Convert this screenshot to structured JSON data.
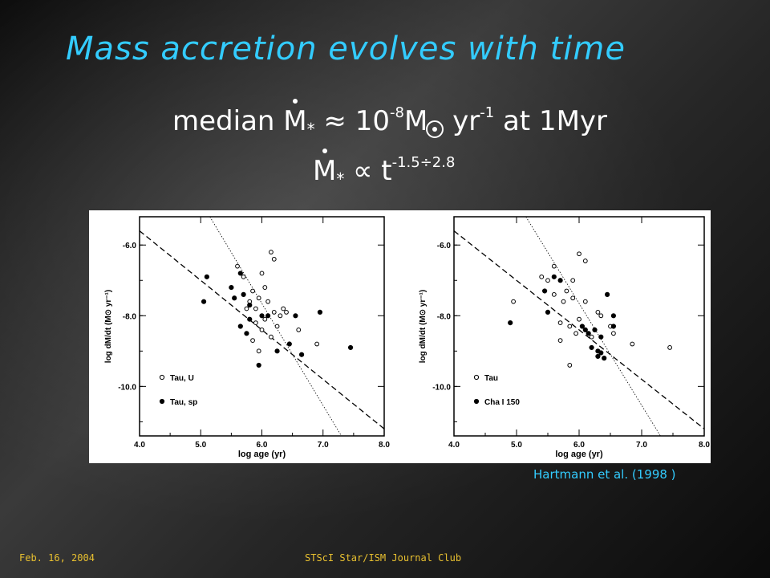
{
  "slide": {
    "title": "Mass accretion evolves with time",
    "eq1": {
      "pre": "median ",
      "m": "M",
      "star": "*",
      "approx": " ≈ 10",
      "exp": "-8",
      "msun": "M",
      "yr": " yr",
      "yrexp": "-1",
      "post": " at 1Myr"
    },
    "eq2": {
      "m": "M",
      "star": "*",
      "prop": " ∝ t",
      "exp": "-1.5÷2.8"
    },
    "citation": "Hartmann et al. (1998 )",
    "footer_date": "Feb. 16, 2004",
    "footer_club": "STScI Star/ISM Journal Club"
  },
  "chart_data": [
    {
      "type": "scatter",
      "xlabel": "log age (yr)",
      "ylabel": "log dM/dt (M⊙ yr⁻¹)",
      "xlim": [
        4.0,
        8.0
      ],
      "ylim": [
        -11.4,
        -5.2
      ],
      "xticks": [
        "4.0",
        "5.0",
        "6.0",
        "7.0",
        "8.0"
      ],
      "yticks": [
        "-6.0",
        "-8.0",
        "-10.0"
      ],
      "xtick_values": [
        4.0,
        5.0,
        6.0,
        7.0,
        8.0
      ],
      "ytick_values": [
        -6.0,
        -8.0,
        -10.0
      ],
      "legend_position": "bottom-left",
      "series": [
        {
          "name": "Tau, U",
          "marker": "open",
          "points": [
            [
              6.15,
              -6.2
            ],
            [
              6.2,
              -6.4
            ],
            [
              5.7,
              -6.9
            ],
            [
              6.0,
              -6.8
            ],
            [
              6.05,
              -7.2
            ],
            [
              5.85,
              -7.3
            ],
            [
              5.95,
              -7.5
            ],
            [
              5.8,
              -7.6
            ],
            [
              6.1,
              -7.6
            ],
            [
              5.75,
              -7.8
            ],
            [
              6.2,
              -7.9
            ],
            [
              6.3,
              -8.0
            ],
            [
              6.4,
              -7.9
            ],
            [
              6.35,
              -7.8
            ],
            [
              5.9,
              -8.2
            ],
            [
              6.0,
              -8.4
            ],
            [
              6.15,
              -8.6
            ],
            [
              5.85,
              -8.7
            ],
            [
              6.25,
              -8.3
            ],
            [
              6.6,
              -8.4
            ],
            [
              6.9,
              -8.8
            ],
            [
              5.95,
              -9.0
            ],
            [
              6.05,
              -8.1
            ],
            [
              5.9,
              -7.8
            ],
            [
              5.6,
              -6.6
            ]
          ]
        },
        {
          "name": "Tau, sp",
          "marker": "filled",
          "points": [
            [
              5.1,
              -6.9
            ],
            [
              5.05,
              -7.6
            ],
            [
              5.5,
              -7.2
            ],
            [
              5.65,
              -6.8
            ],
            [
              5.55,
              -7.5
            ],
            [
              5.7,
              -7.4
            ],
            [
              5.8,
              -7.7
            ],
            [
              6.1,
              -8.0
            ],
            [
              5.75,
              -8.5
            ],
            [
              5.65,
              -8.3
            ],
            [
              6.0,
              -8.0
            ],
            [
              6.55,
              -8.0
            ],
            [
              6.95,
              -7.9
            ],
            [
              6.45,
              -8.8
            ],
            [
              6.65,
              -9.1
            ],
            [
              7.45,
              -8.9
            ],
            [
              5.95,
              -9.4
            ],
            [
              6.25,
              -9.0
            ],
            [
              5.8,
              -8.1
            ]
          ]
        }
      ],
      "lines": [
        {
          "style": "dashed",
          "from": [
            4.0,
            -5.6
          ],
          "to": [
            8.0,
            -11.2
          ]
        },
        {
          "style": "dotted",
          "from": [
            5.15,
            -5.2
          ],
          "to": [
            7.3,
            -11.4
          ]
        }
      ]
    },
    {
      "type": "scatter",
      "xlabel": "log age (yr)",
      "ylabel": "log dM/dt (M⊙ yr⁻¹)",
      "xlim": [
        4.0,
        8.0
      ],
      "ylim": [
        -11.4,
        -5.2
      ],
      "xticks": [
        "4.0",
        "5.0",
        "6.0",
        "7.0",
        "8.0"
      ],
      "yticks": [
        "-6.0",
        "-8.0",
        "-10.0"
      ],
      "xtick_values": [
        4.0,
        5.0,
        6.0,
        7.0,
        8.0
      ],
      "ytick_values": [
        -6.0,
        -8.0,
        -10.0
      ],
      "legend_position": "bottom-left",
      "series": [
        {
          "name": "Tau",
          "marker": "open",
          "points": [
            [
              6.0,
              -6.25
            ],
            [
              6.1,
              -6.45
            ],
            [
              5.6,
              -6.6
            ],
            [
              5.4,
              -6.9
            ],
            [
              5.9,
              -7.0
            ],
            [
              5.8,
              -7.3
            ],
            [
              5.6,
              -7.4
            ],
            [
              5.75,
              -7.6
            ],
            [
              5.9,
              -7.5
            ],
            [
              6.1,
              -7.6
            ],
            [
              6.3,
              -7.9
            ],
            [
              6.35,
              -8.0
            ],
            [
              5.7,
              -8.2
            ],
            [
              5.85,
              -8.3
            ],
            [
              5.95,
              -8.5
            ],
            [
              6.2,
              -8.6
            ],
            [
              5.7,
              -8.7
            ],
            [
              6.5,
              -8.3
            ],
            [
              6.55,
              -8.5
            ],
            [
              6.85,
              -8.8
            ],
            [
              7.45,
              -8.9
            ],
            [
              5.85,
              -9.4
            ],
            [
              6.0,
              -8.1
            ],
            [
              5.5,
              -7.0
            ],
            [
              4.95,
              -7.6
            ]
          ]
        },
        {
          "name": "Cha I 150",
          "marker": "filled",
          "points": [
            [
              4.9,
              -8.2
            ],
            [
              5.6,
              -6.9
            ],
            [
              5.7,
              -7.0
            ],
            [
              5.45,
              -7.3
            ],
            [
              5.5,
              -7.9
            ],
            [
              6.1,
              -8.4
            ],
            [
              6.15,
              -8.5
            ],
            [
              6.25,
              -8.4
            ],
            [
              6.35,
              -8.6
            ],
            [
              6.3,
              -9.0
            ],
            [
              6.3,
              -9.15
            ],
            [
              6.35,
              -9.05
            ],
            [
              6.55,
              -8.0
            ],
            [
              6.55,
              -8.3
            ],
            [
              6.45,
              -7.4
            ],
            [
              6.05,
              -8.3
            ],
            [
              6.2,
              -8.9
            ],
            [
              6.4,
              -9.2
            ]
          ]
        }
      ],
      "lines": [
        {
          "style": "dashed",
          "from": [
            4.0,
            -5.6
          ],
          "to": [
            8.0,
            -11.2
          ]
        },
        {
          "style": "dotted",
          "from": [
            5.15,
            -5.2
          ],
          "to": [
            7.3,
            -11.4
          ]
        }
      ]
    }
  ]
}
